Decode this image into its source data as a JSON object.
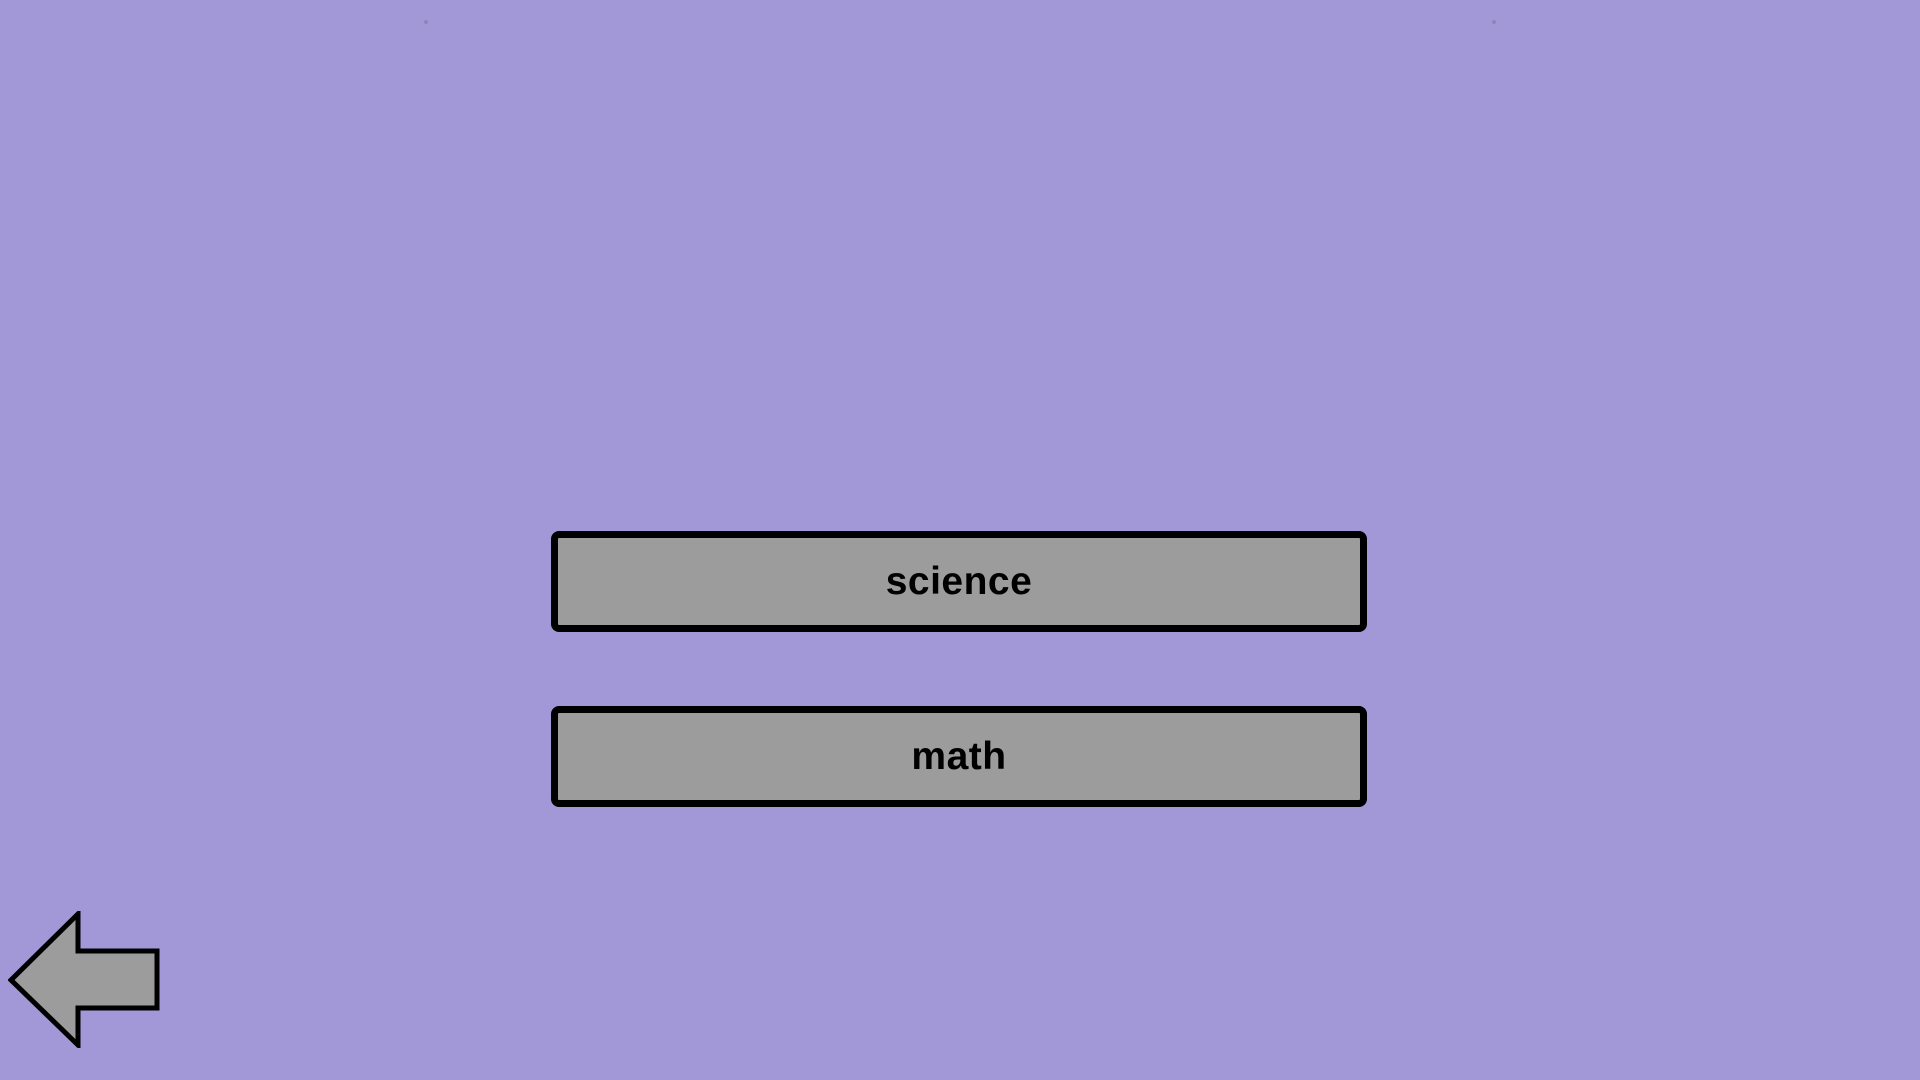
{
  "colors": {
    "background": "#a398d7",
    "button_fill": "#9c9c9c",
    "button_border": "#000000",
    "text": "#000000"
  },
  "menu": {
    "items": [
      {
        "label": "science"
      },
      {
        "label": "math"
      }
    ]
  },
  "navigation": {
    "back_icon": "arrow-left-icon"
  }
}
